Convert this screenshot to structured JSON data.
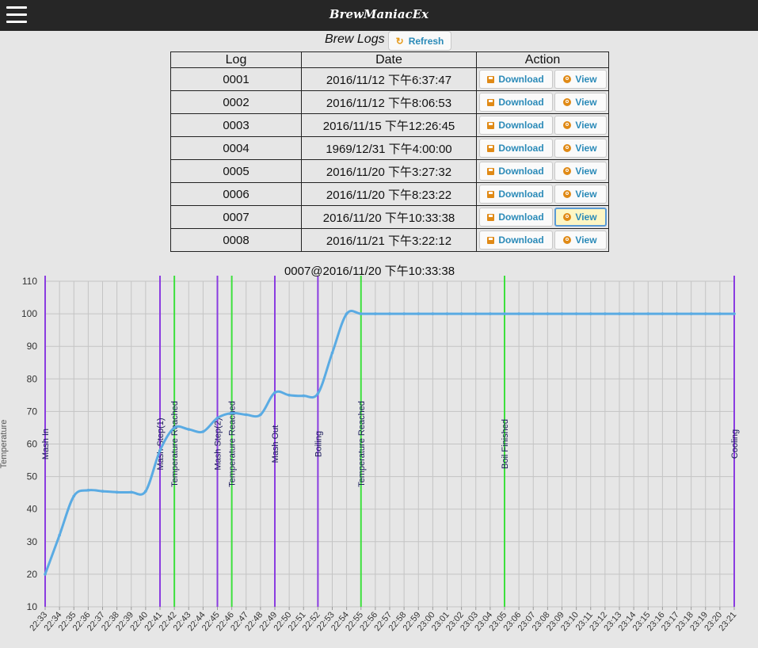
{
  "app": {
    "title": "BrewManiacEx"
  },
  "logs": {
    "title": "Brew Logs",
    "refresh_label": "Refresh",
    "columns": [
      "Log",
      "Date",
      "Action"
    ],
    "download_label": "Download",
    "view_label": "View",
    "rows": [
      {
        "log": "0001",
        "date": "2016/11/12 下午6:37:47"
      },
      {
        "log": "0002",
        "date": "2016/11/12 下午8:06:53"
      },
      {
        "log": "0003",
        "date": "2016/11/15 下午12:26:45"
      },
      {
        "log": "0004",
        "date": "1969/12/31 下午4:00:00"
      },
      {
        "log": "0005",
        "date": "2016/11/20 下午3:27:32"
      },
      {
        "log": "0006",
        "date": "2016/11/20 下午8:23:22"
      },
      {
        "log": "0007",
        "date": "2016/11/20 下午10:33:38"
      },
      {
        "log": "0008",
        "date": "2016/11/21 下午3:22:12"
      }
    ],
    "selected": "0007"
  },
  "chart_data": {
    "type": "line",
    "title": "0007@2016/11/20 下午10:33:38",
    "ylabel": "Temperature",
    "xlabel": "",
    "ylim": [
      10,
      110
    ],
    "yticks": [
      10,
      20,
      30,
      40,
      50,
      60,
      70,
      80,
      90,
      100,
      110
    ],
    "grid": true,
    "xticks": [
      "22:33",
      "22:34",
      "22:35",
      "22:36",
      "22:37",
      "22:38",
      "22:39",
      "22:40",
      "22:41",
      "22:42",
      "22:43",
      "22:44",
      "22:45",
      "22:46",
      "22:47",
      "22:48",
      "22:49",
      "22:50",
      "22:51",
      "22:52",
      "22:53",
      "22:54",
      "22:55",
      "22:56",
      "22:57",
      "22:58",
      "22:59",
      "23:00",
      "23:01",
      "23:02",
      "23:03",
      "23:04",
      "23:05",
      "23:06",
      "23:07",
      "23:08",
      "23:09",
      "23:10",
      "23:11",
      "23:12",
      "23:13",
      "23:14",
      "23:15",
      "23:16",
      "23:17",
      "23:18",
      "23:19",
      "23:20",
      "23:21"
    ],
    "series": [
      {
        "color": "#5aabe3",
        "x": [
          "22:33",
          "22:34",
          "22:35",
          "22:36",
          "22:37",
          "22:38",
          "22:39",
          "22:40",
          "22:41",
          "22:42",
          "22:43",
          "22:44",
          "22:45",
          "22:46",
          "22:47",
          "22:48",
          "22:49",
          "22:50",
          "22:51",
          "22:52",
          "22:53",
          "22:54",
          "22:55",
          "22:56",
          "22:57",
          "22:58",
          "22:59",
          "23:00",
          "23:01",
          "23:02",
          "23:03",
          "23:04",
          "23:05",
          "23:06",
          "23:07",
          "23:08",
          "23:09",
          "23:10",
          "23:11",
          "23:12",
          "23:13",
          "23:14",
          "23:15",
          "23:16",
          "23:17",
          "23:18",
          "23:19",
          "23:20",
          "23:21"
        ],
        "values": [
          20,
          32,
          44,
          45.8,
          45.5,
          45.2,
          45.2,
          45.5,
          58,
          65,
          64.5,
          63.8,
          68,
          69.5,
          69,
          69,
          75.8,
          75,
          74.8,
          75.5,
          88,
          100,
          100,
          100,
          100,
          100,
          100,
          100,
          100,
          100,
          100,
          100,
          100,
          100,
          100,
          100,
          100,
          100,
          100,
          100,
          100,
          100,
          100,
          100,
          100,
          100,
          100,
          100,
          100
        ]
      }
    ],
    "events": [
      {
        "time": "22:33",
        "label": "Mash In",
        "color": "#8a3ce0"
      },
      {
        "time": "22:41",
        "label": "Mash Step(1)",
        "color": "#8a3ce0"
      },
      {
        "time": "22:42",
        "label": "Temperature Reached",
        "color": "#3ce03c"
      },
      {
        "time": "22:45",
        "label": "Mash Step(2)",
        "color": "#8a3ce0"
      },
      {
        "time": "22:46",
        "label": "Temperature Reached",
        "color": "#3ce03c"
      },
      {
        "time": "22:49",
        "label": "Mash Out",
        "color": "#8a3ce0"
      },
      {
        "time": "22:52",
        "label": "Boiling",
        "color": "#8a3ce0"
      },
      {
        "time": "22:55",
        "label": "Temperature Reached",
        "color": "#3ce03c"
      },
      {
        "time": "23:05",
        "label": "Boil Finished",
        "color": "#3ce03c"
      },
      {
        "time": "23:21",
        "label": "Cooling",
        "color": "#8a3ce0"
      }
    ]
  }
}
